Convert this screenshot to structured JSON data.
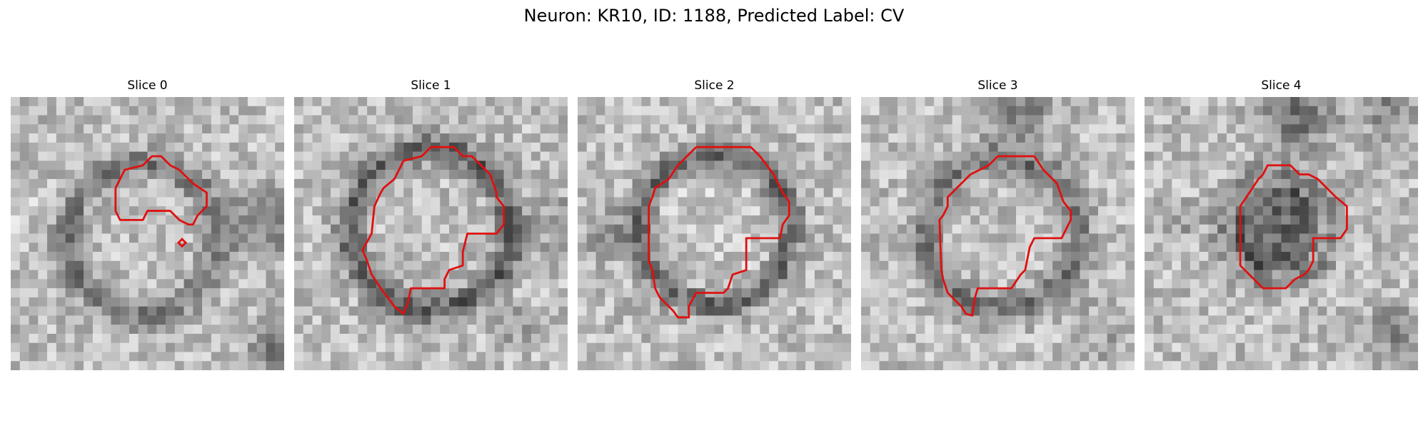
{
  "figure": {
    "title": "Neuron: KR10, ID: 1188, Predicted Label: CV"
  },
  "colors": {
    "contour": "#e01010",
    "background": "#ffffff"
  },
  "panels": [
    {
      "title": "Slice 0"
    },
    {
      "title": "Slice 1"
    },
    {
      "title": "Slice 2"
    },
    {
      "title": "Slice 3"
    },
    {
      "title": "Slice 4"
    }
  ]
}
